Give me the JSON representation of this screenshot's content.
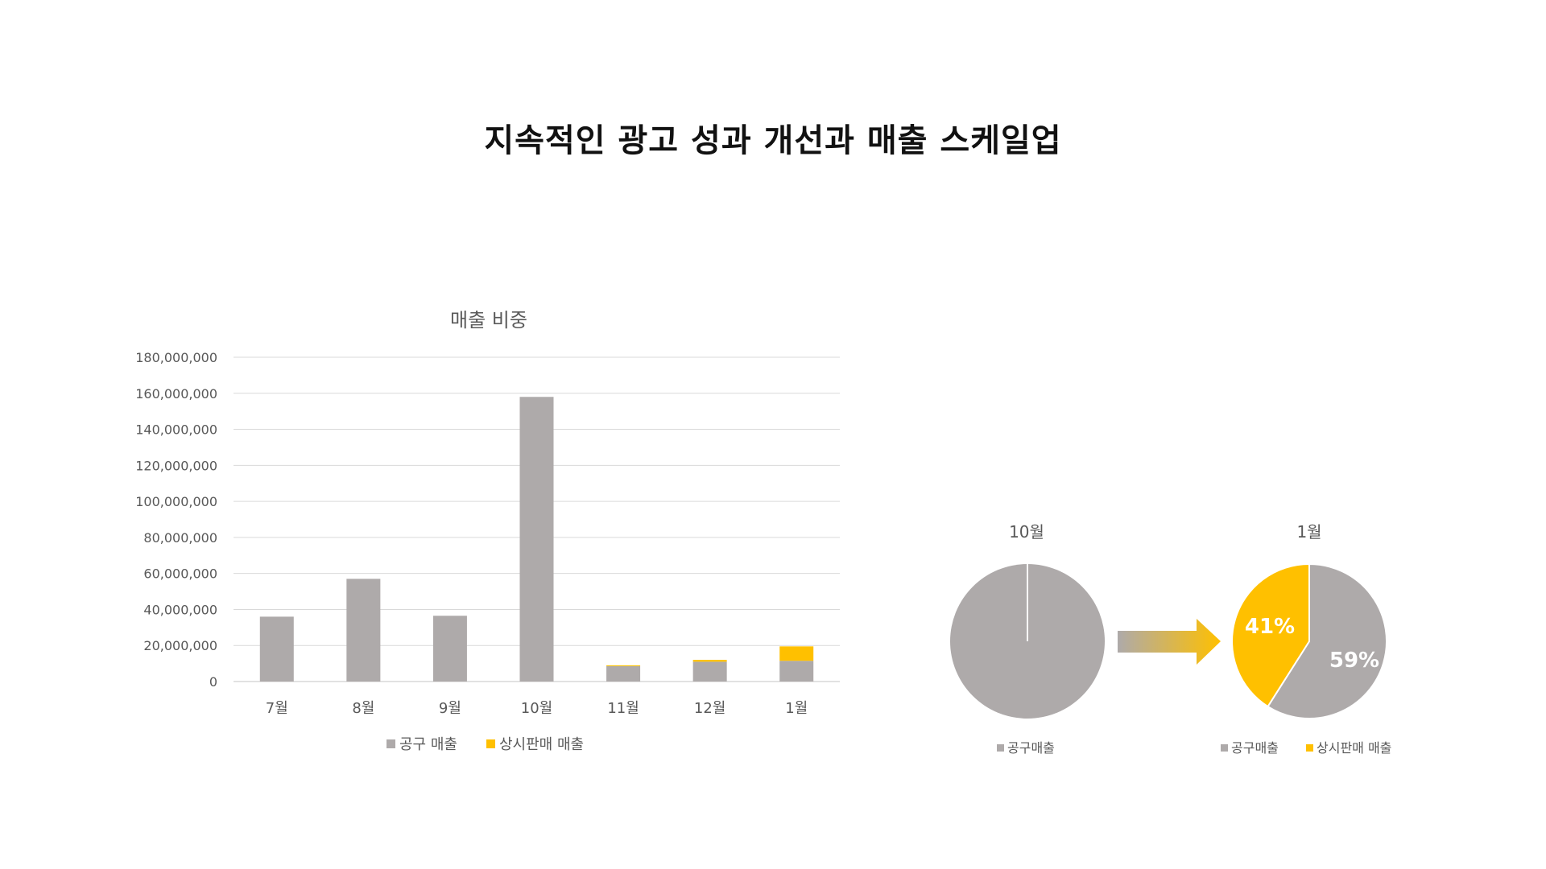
{
  "page": {
    "title": "지속적인 광고 성과 개선과 매출 스케일업"
  },
  "colors": {
    "gongu": "#AEAAAA",
    "sangsi": "#FFC000",
    "grid": "#D9D9D9",
    "text": "#595959"
  },
  "chart_data": [
    {
      "type": "bar",
      "stacked": true,
      "title": "매출 비중",
      "categories": [
        "7월",
        "8월",
        "9월",
        "10월",
        "11월",
        "12월",
        "1월"
      ],
      "series": [
        {
          "name": "공구 매출",
          "color": "#AEAAAA",
          "values": [
            36000000,
            57000000,
            36500000,
            158000000,
            8500000,
            11000000,
            11500000
          ]
        },
        {
          "name": "상시판매 매출",
          "color": "#FFC000",
          "values": [
            0,
            0,
            0,
            0,
            500000,
            1000000,
            8000000
          ]
        }
      ],
      "ylim": [
        0,
        180000000
      ],
      "yticks": [
        "0",
        "20,000,000",
        "40,000,000",
        "60,000,000",
        "80,000,000",
        "100,000,000",
        "120,000,000",
        "140,000,000",
        "160,000,000",
        "180,000,000"
      ],
      "grid": true,
      "legend": "bottom"
    },
    {
      "type": "pie",
      "title": "10월",
      "labels": [
        "공구매출"
      ],
      "values": [
        100
      ],
      "colors": [
        "#AEAAAA"
      ],
      "legend": "bottom"
    },
    {
      "type": "pie",
      "title": "1월",
      "labels": [
        "공구매출",
        "상시판매 매출"
      ],
      "values": [
        59,
        41
      ],
      "data_labels": [
        "59%",
        "41%"
      ],
      "colors": [
        "#AEAAAA",
        "#FFC000"
      ],
      "legend": "bottom"
    }
  ]
}
